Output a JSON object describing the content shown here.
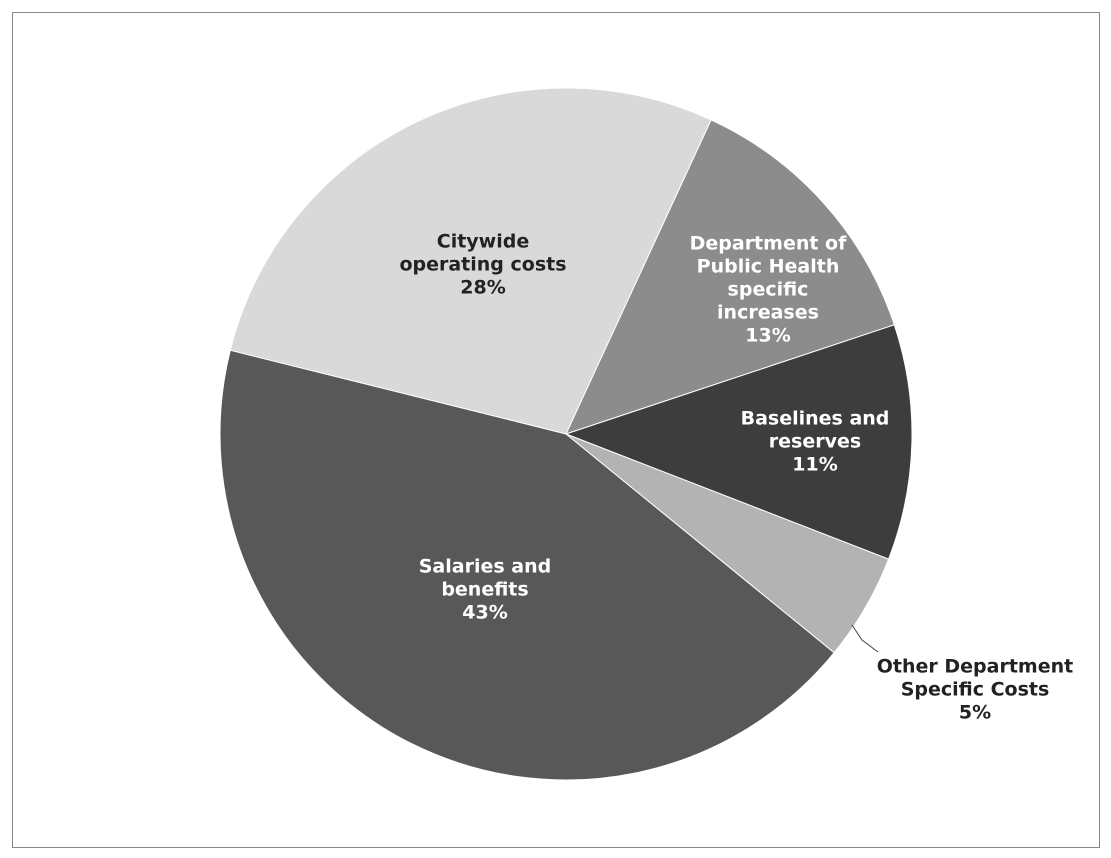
{
  "chart_data": {
    "type": "pie",
    "categories": [
      "Citywide operating costs",
      "Department of Public Health specific increases",
      "Baselines and reserves",
      "Other Department Specific Costs",
      "Salaries and benefits"
    ],
    "values": [
      28,
      13,
      11,
      5,
      43
    ],
    "value_labels": [
      "28%",
      "13%",
      "11%",
      "5%",
      "43%"
    ],
    "colors": [
      "#d9d9d9",
      "#8c8c8c",
      "#3d3d3d",
      "#b3b3b3",
      "#585858"
    ]
  }
}
